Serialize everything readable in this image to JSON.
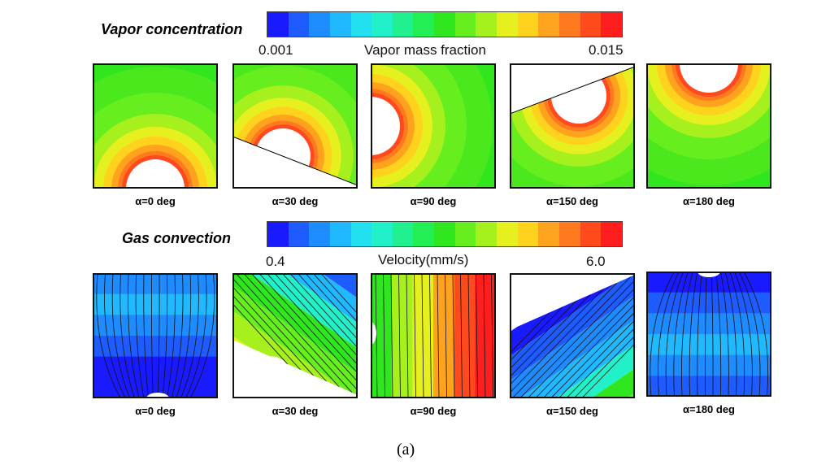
{
  "figure_caption": "(a)",
  "vapor": {
    "title": "Vapor concentration",
    "colorbar_label": "Vapor mass fraction",
    "min_label": "0.001",
    "max_label": "0.015"
  },
  "gas": {
    "title": "Gas convection",
    "colorbar_label": "Velocity(mm/s)",
    "min_label": "0.4",
    "max_label": "6.0"
  },
  "colormap": [
    "#1a1aff",
    "#1f5cff",
    "#1e8cff",
    "#20b8ff",
    "#22e0f0",
    "#22f0c8",
    "#20f090",
    "#22ee55",
    "#30e61e",
    "#66ee1e",
    "#a6f01e",
    "#e6f01e",
    "#ffd21e",
    "#ffa21e",
    "#ff7a1e",
    "#ff4a1e",
    "#ff1e1e"
  ],
  "panels": [
    {
      "caption": "α=0 deg",
      "angle": 0
    },
    {
      "caption": "α=30 deg",
      "angle": 30
    },
    {
      "caption": "α=90 deg",
      "angle": 90
    },
    {
      "caption": "α=150 deg",
      "angle": 150
    },
    {
      "caption": "α=180 deg",
      "angle": 180
    }
  ]
}
